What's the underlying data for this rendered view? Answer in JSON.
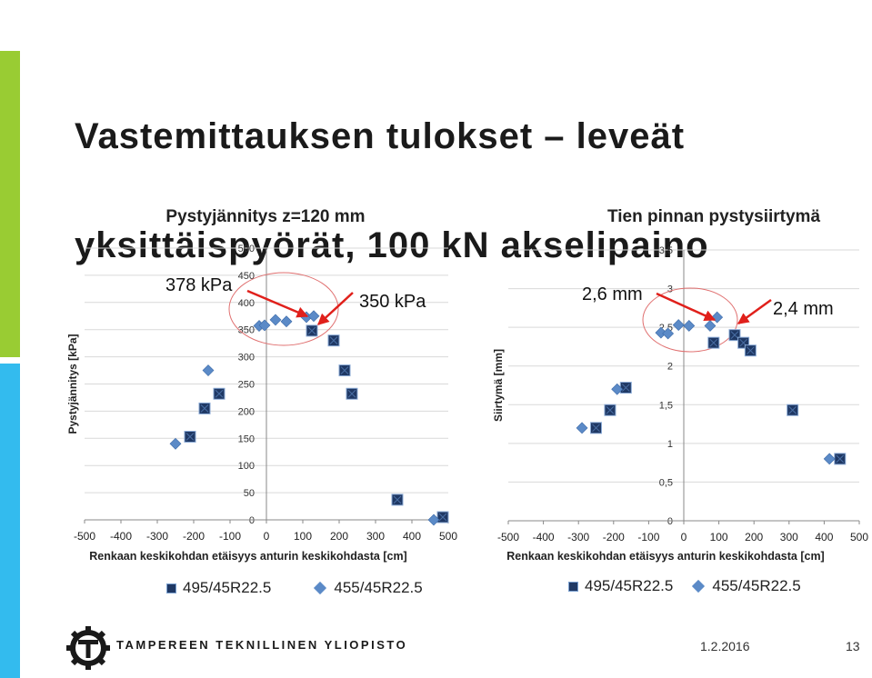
{
  "slide": {
    "title_line1": "Vastemittauksen tulokset – leveät",
    "title_line2": "yksittäispyörät, 100 kN akselipaino",
    "org": "TAMPEREEN TEKNILLINEN YLIOPISTO",
    "date": "1.2.2016",
    "page": "13",
    "colors": {
      "sidebar_top": "#99cc33",
      "sidebar_bottom": "#33bbee",
      "square_marker": "#1f3864",
      "diamond_marker": "#5b8ac7",
      "arrow": "#e0201b"
    }
  },
  "chart_data": [
    {
      "type": "scatter",
      "title": "Pystyjännitys z=120 mm",
      "xlabel": "Renkaan keskikohdan etäisyys anturin keskikohdasta [cm]",
      "ylabel": "Pystyjännitys [kPa]",
      "xlim": [
        -500,
        500
      ],
      "ylim": [
        0,
        500
      ],
      "x_ticks": [
        "-500",
        "-400",
        "-300",
        "-200",
        "-100",
        "0",
        "100",
        "200",
        "300",
        "400",
        "500"
      ],
      "y_ticks": [
        "0",
        "50",
        "100",
        "150",
        "200",
        "250",
        "300",
        "350",
        "400",
        "450",
        "500"
      ],
      "grid": true,
      "legend_position": "bottom",
      "series": [
        {
          "name": "495/45R22.5",
          "marker": "square",
          "points": [
            [
              -210,
              153
            ],
            [
              -170,
              205
            ],
            [
              -130,
              232
            ],
            [
              125,
              348
            ],
            [
              185,
              330
            ],
            [
              215,
              275
            ],
            [
              235,
              232
            ],
            [
              360,
              37
            ],
            [
              485,
              5
            ]
          ]
        },
        {
          "name": "455/45R22.5",
          "marker": "diamond",
          "points": [
            [
              -250,
              140
            ],
            [
              -160,
              275
            ],
            [
              -20,
              357
            ],
            [
              -5,
              358
            ],
            [
              25,
              368
            ],
            [
              55,
              365
            ],
            [
              110,
              373
            ],
            [
              130,
              375
            ],
            [
              460,
              0
            ]
          ]
        }
      ],
      "annotations": [
        {
          "text": "378 kPa"
        },
        {
          "text": "350 kPa"
        }
      ]
    },
    {
      "type": "scatter",
      "title": "Tien pinnan pystysiirtymä",
      "xlabel": "Renkaan keskikohdan etäisyys anturin keskikohdasta [cm]",
      "ylabel": "Siirtymä [mm]",
      "xlim": [
        -500,
        500
      ],
      "ylim": [
        0,
        3.5
      ],
      "x_ticks": [
        "-500",
        "-400",
        "-300",
        "-200",
        "-100",
        "0",
        "100",
        "200",
        "300",
        "400",
        "500"
      ],
      "y_ticks": [
        "0",
        "0,5",
        "1",
        "1,5",
        "2",
        "2,5",
        "3",
        "3,5"
      ],
      "grid": true,
      "legend_position": "bottom",
      "series": [
        {
          "name": "495/45R22.5",
          "marker": "square",
          "points": [
            [
              -250,
              1.2
            ],
            [
              -210,
              1.43
            ],
            [
              -165,
              1.72
            ],
            [
              85,
              2.3
            ],
            [
              145,
              2.4
            ],
            [
              170,
              2.3
            ],
            [
              190,
              2.2
            ],
            [
              310,
              1.43
            ],
            [
              445,
              0.8
            ]
          ]
        },
        {
          "name": "455/45R22.5",
          "marker": "diamond",
          "points": [
            [
              -290,
              1.2
            ],
            [
              -190,
              1.7
            ],
            [
              -65,
              2.43
            ],
            [
              -45,
              2.42
            ],
            [
              -15,
              2.53
            ],
            [
              15,
              2.52
            ],
            [
              75,
              2.52
            ],
            [
              95,
              2.63
            ],
            [
              415,
              0.8
            ]
          ]
        }
      ],
      "annotations": [
        {
          "text": "2,6 mm"
        },
        {
          "text": "2,4 mm"
        }
      ]
    }
  ]
}
